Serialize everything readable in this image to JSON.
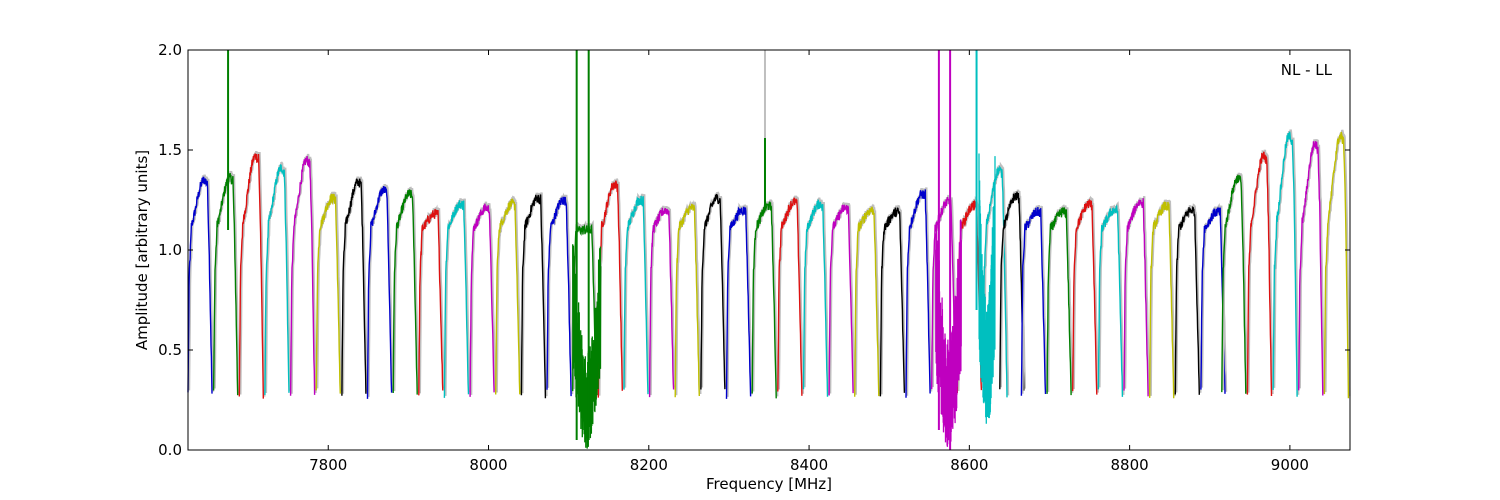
{
  "chart_data": {
    "type": "line",
    "title": "",
    "xlabel": "Frequency [MHz]",
    "ylabel": "Amplitude [arbitrary units]",
    "annotation": "NL - LL",
    "xlim": [
      7625,
      9075
    ],
    "ylim": [
      0.0,
      2.0
    ],
    "x_ticks": [
      7800,
      8000,
      8200,
      8400,
      8600,
      8800,
      9000
    ],
    "y_ticks": [
      "0.0",
      "0.5",
      "1.0",
      "1.5",
      "2.0"
    ],
    "grid": false,
    "legend": "none",
    "background_trace_color": "#bfbfbf",
    "channel_width_mhz": 32,
    "colors": [
      "#0000cc",
      "#007f00",
      "#dd1111",
      "#00bfbf",
      "#bf00bf",
      "#bfbf00",
      "#000000"
    ],
    "series": [
      {
        "start": 7625,
        "peak": 1.35,
        "color": "#0000cc"
      },
      {
        "start": 7657,
        "peak": 1.36,
        "color": "#007f00"
      },
      {
        "start": 7689,
        "peak": 1.47,
        "color": "#dd1111"
      },
      {
        "start": 7721,
        "peak": 1.41,
        "color": "#00bfbf"
      },
      {
        "start": 7753,
        "peak": 1.45,
        "color": "#bf00bf"
      },
      {
        "start": 7785,
        "peak": 1.26,
        "color": "#bfbf00"
      },
      {
        "start": 7817,
        "peak": 1.34,
        "color": "#000000"
      },
      {
        "start": 7849,
        "peak": 1.3,
        "color": "#0000cc"
      },
      {
        "start": 7881,
        "peak": 1.28,
        "color": "#007f00"
      },
      {
        "start": 7913,
        "peak": 1.18,
        "color": "#dd1111"
      },
      {
        "start": 7945,
        "peak": 1.23,
        "color": "#00bfbf"
      },
      {
        "start": 7977,
        "peak": 1.21,
        "color": "#bf00bf"
      },
      {
        "start": 8009,
        "peak": 1.23,
        "color": "#bfbf00"
      },
      {
        "start": 8041,
        "peak": 1.26,
        "color": "#000000"
      },
      {
        "start": 8073,
        "peak": 1.25,
        "color": "#0000cc"
      },
      {
        "start": 8105,
        "peak": 1.1,
        "color": "#007f00"
      },
      {
        "start": 8137,
        "peak": 1.33,
        "color": "#dd1111"
      },
      {
        "start": 8169,
        "peak": 1.25,
        "color": "#00bfbf"
      },
      {
        "start": 8201,
        "peak": 1.2,
        "color": "#bf00bf"
      },
      {
        "start": 8233,
        "peak": 1.21,
        "color": "#bfbf00"
      },
      {
        "start": 8265,
        "peak": 1.26,
        "color": "#000000"
      },
      {
        "start": 8297,
        "peak": 1.2,
        "color": "#0000cc"
      },
      {
        "start": 8329,
        "peak": 1.22,
        "color": "#007f00"
      },
      {
        "start": 8361,
        "peak": 1.24,
        "color": "#dd1111"
      },
      {
        "start": 8393,
        "peak": 1.23,
        "color": "#00bfbf"
      },
      {
        "start": 8425,
        "peak": 1.21,
        "color": "#bf00bf"
      },
      {
        "start": 8457,
        "peak": 1.2,
        "color": "#bfbf00"
      },
      {
        "start": 8489,
        "peak": 1.19,
        "color": "#000000"
      },
      {
        "start": 8521,
        "peak": 1.28,
        "color": "#0000cc"
      },
      {
        "start": 8553,
        "peak": 1.24,
        "color": "#bf00bf"
      },
      {
        "start": 8585,
        "peak": 1.22,
        "color": "#dd1111"
      },
      {
        "start": 8617,
        "peak": 1.4,
        "color": "#00bfbf"
      },
      {
        "start": 8638,
        "peak": 1.27,
        "color": "#000000"
      },
      {
        "start": 8665,
        "peak": 1.19,
        "color": "#0000cc"
      },
      {
        "start": 8697,
        "peak": 1.19,
        "color": "#007f00"
      },
      {
        "start": 8729,
        "peak": 1.23,
        "color": "#dd1111"
      },
      {
        "start": 8761,
        "peak": 1.2,
        "color": "#00bfbf"
      },
      {
        "start": 8793,
        "peak": 1.24,
        "color": "#bf00bf"
      },
      {
        "start": 8825,
        "peak": 1.22,
        "color": "#bfbf00"
      },
      {
        "start": 8857,
        "peak": 1.2,
        "color": "#000000"
      },
      {
        "start": 8889,
        "peak": 1.19,
        "color": "#0000cc"
      },
      {
        "start": 8915,
        "peak": 1.36,
        "color": "#007f00"
      },
      {
        "start": 8947,
        "peak": 1.47,
        "color": "#dd1111"
      },
      {
        "start": 8979,
        "peak": 1.57,
        "color": "#00bfbf"
      },
      {
        "start": 9011,
        "peak": 1.53,
        "color": "#bf00bf"
      },
      {
        "start": 9043,
        "peak": 1.57,
        "color": "#bfbf00"
      }
    ],
    "spikes": [
      {
        "x": 7675,
        "top": 2.0,
        "bottom": 1.1,
        "color": "#007f00"
      },
      {
        "x": 8345,
        "top": 2.0,
        "bottom": 1.2,
        "color": "#bfbfbf"
      },
      {
        "x": 8345,
        "top": 1.56,
        "bottom": 1.2,
        "color": "#007f00"
      },
      {
        "x": 8110,
        "top": 2.0,
        "bottom": 0.05,
        "color": "#007f00"
      },
      {
        "x": 8125,
        "top": 2.0,
        "bottom": 0.05,
        "color": "#007f00"
      },
      {
        "x": 8562,
        "top": 2.0,
        "bottom": 0.1,
        "color": "#bf00bf"
      },
      {
        "x": 8576,
        "top": 2.0,
        "bottom": 0.0,
        "color": "#bf00bf"
      },
      {
        "x": 8609,
        "top": 2.0,
        "bottom": 0.7,
        "color": "#00bfbf"
      }
    ],
    "noise_regions": [
      {
        "x_start": 8105,
        "x_end": 8140,
        "low": 0.0,
        "high": 1.12,
        "color": "#007f00"
      },
      {
        "x_start": 8558,
        "x_end": 8590,
        "low": 0.0,
        "high": 1.25,
        "color": "#bf00bf"
      },
      {
        "x_start": 8612,
        "x_end": 8632,
        "low": 0.1,
        "high": 1.5,
        "color": "#00bfbf"
      }
    ]
  }
}
